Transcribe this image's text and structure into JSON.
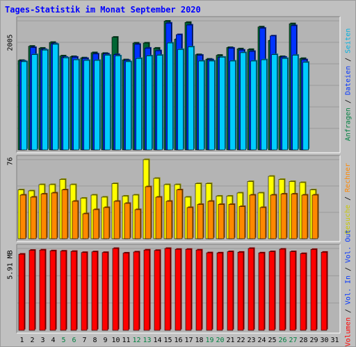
{
  "title": "Tages-Statistik im Monat September 2020",
  "colors": {
    "background": "#c0c0c0",
    "plot": "#b0b0b0",
    "hits": "#006633",
    "files": "#0033ff",
    "pages": "#00ccff",
    "visits": "#ffff00",
    "sites": "#ff8800",
    "kbytes": "#ff0000",
    "weekend_day": "#008040",
    "weekday": "#000000"
  },
  "panels": {
    "top": {
      "max_label": "2005",
      "legend": [
        {
          "text": "Anfragen",
          "color": "#008040"
        },
        {
          "text": "Dateien",
          "color": "#0033ff"
        },
        {
          "text": "Seiten",
          "color": "#00b0e0"
        }
      ]
    },
    "middle": {
      "max_label": "76",
      "legend": [
        {
          "text": "Besuche",
          "color": "#c8c800"
        },
        {
          "text": "Rechner",
          "color": "#ff8800"
        }
      ]
    },
    "bottom": {
      "max_label": "5.91 MB",
      "legend": [
        {
          "text": "Volumen",
          "color": "#ff0000"
        },
        {
          "text": "Vol. In",
          "color": "#0033ff"
        },
        {
          "text": "Vol. Out",
          "color": "#0033ff"
        }
      ]
    }
  },
  "chart_data": {
    "type": "bar",
    "title": "Tages-Statistik im Monat September 2020",
    "categories": [
      "1",
      "2",
      "3",
      "4",
      "5",
      "6",
      "7",
      "8",
      "9",
      "10",
      "11",
      "12",
      "13",
      "14",
      "15",
      "16",
      "17",
      "18",
      "19",
      "20",
      "21",
      "22",
      "23",
      "24",
      "25",
      "26",
      "27",
      "28",
      "29",
      "30",
      "31"
    ],
    "weekend_days": [
      "5",
      "6",
      "12",
      "13",
      "19",
      "20",
      "26",
      "27"
    ],
    "panels": [
      {
        "ymax": 2005,
        "ylim": [
          0,
          2005
        ],
        "series": [
          {
            "name": "Anfragen",
            "values": [
              1390,
              1610,
              1580,
              1670,
              1460,
              1450,
              1430,
              1510,
              1500,
              1750,
              1400,
              1660,
              1660,
              1580,
              2000,
              1720,
              1980,
              1480,
              1410,
              1470,
              1590,
              1570,
              1560,
              1910,
              1700,
              1450,
              1960,
              1420,
              0,
              0,
              0
            ]
          },
          {
            "name": "Dateien",
            "values": [
              1380,
              1590,
              1560,
              1650,
              1440,
              1440,
              1420,
              1490,
              1490,
              1480,
              1390,
              1640,
              1580,
              1540,
              1970,
              1790,
              1940,
              1470,
              1400,
              1440,
              1580,
              1550,
              1530,
              1890,
              1770,
              1440,
              1930,
              1400,
              0,
              0,
              0
            ]
          },
          {
            "name": "Seiten",
            "values": [
              1370,
              1480,
              1550,
              1640,
              1430,
              1400,
              1390,
              1390,
              1470,
              1460,
              1370,
              1420,
              1460,
              1470,
              1660,
              1560,
              1600,
              1380,
              1380,
              1440,
              1380,
              1510,
              1380,
              1400,
              1480,
              1420,
              1470,
              1360,
              0,
              0,
              0
            ]
          }
        ]
      },
      {
        "ymax": 76,
        "ylim": [
          0,
          76
        ],
        "series": [
          {
            "name": "Besuche",
            "values": [
              47,
              46,
              52,
              52,
              57,
              52,
              39,
              42,
              40,
              53,
              41,
              42,
              76,
              58,
              52,
              52,
              40,
              53,
              53,
              41,
              41,
              44,
              55,
              44,
              60,
              57,
              55,
              54,
              47,
              0,
              0
            ]
          },
          {
            "name": "Rechner",
            "values": [
              42,
              40,
              43,
              44,
              47,
              36,
              24,
              28,
              30,
              36,
              34,
              28,
              50,
              40,
              36,
              47,
              30,
              33,
              36,
              33,
              33,
              31,
              42,
              30,
              42,
              43,
              43,
              42,
              42,
              0,
              0
            ]
          }
        ]
      },
      {
        "ymax": 5.91,
        "ylim": [
          0,
          5.91
        ],
        "series": [
          {
            "name": "Volumen",
            "values": [
              5.5,
              5.78,
              5.8,
              5.74,
              5.72,
              5.7,
              5.62,
              5.67,
              5.62,
              5.91,
              5.58,
              5.66,
              5.8,
              5.77,
              5.91,
              5.85,
              5.85,
              5.8,
              5.6,
              5.59,
              5.68,
              5.64,
              5.91,
              5.59,
              5.68,
              5.86,
              5.68,
              5.54,
              5.84,
              5.64,
              0
            ]
          }
        ]
      }
    ]
  }
}
